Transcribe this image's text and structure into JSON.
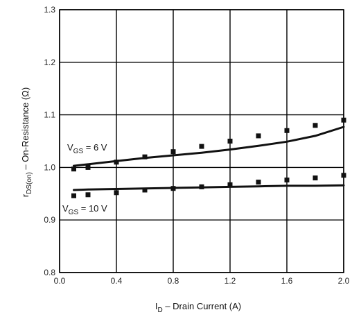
{
  "chart_data": {
    "type": "line",
    "title": "",
    "xlabel": {
      "main": "I",
      "sub": "D",
      "rest": " – Drain Current (A)"
    },
    "ylabel": {
      "main": "r",
      "sub": "DS(on)",
      "rest": " – On-Resistance (Ω)"
    },
    "xlim": [
      0.0,
      2.0
    ],
    "ylim": [
      0.8,
      1.3
    ],
    "xticks": [
      "0.0",
      "0.4",
      "0.8",
      "1.2",
      "1.6",
      "2.0"
    ],
    "yticks": [
      "0.8",
      "0.9",
      "1.0",
      "1.1",
      "1.2",
      "1.3"
    ],
    "grid": true,
    "series": [
      {
        "name": "VGS = 6 V",
        "label": {
          "main": "V",
          "sub": "GS",
          "rest": " = 6 V"
        },
        "x": [
          0.1,
          0.2,
          0.4,
          0.6,
          0.8,
          1.0,
          1.2,
          1.4,
          1.6,
          1.8,
          2.0
        ],
        "line": [
          1.003,
          1.006,
          1.012,
          1.018,
          1.023,
          1.028,
          1.034,
          1.041,
          1.049,
          1.06,
          1.077
        ],
        "markers": [
          0.997,
          1.0,
          1.01,
          1.02,
          1.03,
          1.04,
          1.05,
          1.06,
          1.07,
          1.08,
          1.09
        ]
      },
      {
        "name": "VGS = 10 V",
        "label": {
          "main": "V",
          "sub": "GS",
          "rest": " = 10 V"
        },
        "x": [
          0.1,
          0.2,
          0.4,
          0.6,
          0.8,
          1.0,
          1.2,
          1.4,
          1.6,
          1.8,
          2.0
        ],
        "line": [
          0.957,
          0.958,
          0.959,
          0.96,
          0.961,
          0.962,
          0.963,
          0.964,
          0.965,
          0.965,
          0.966
        ],
        "markers": [
          0.946,
          0.948,
          0.952,
          0.957,
          0.96,
          0.963,
          0.967,
          0.972,
          0.976,
          0.98,
          0.985
        ]
      }
    ],
    "colors": {
      "line": "#111111",
      "grid": "#000000",
      "marker": "#111111"
    }
  }
}
